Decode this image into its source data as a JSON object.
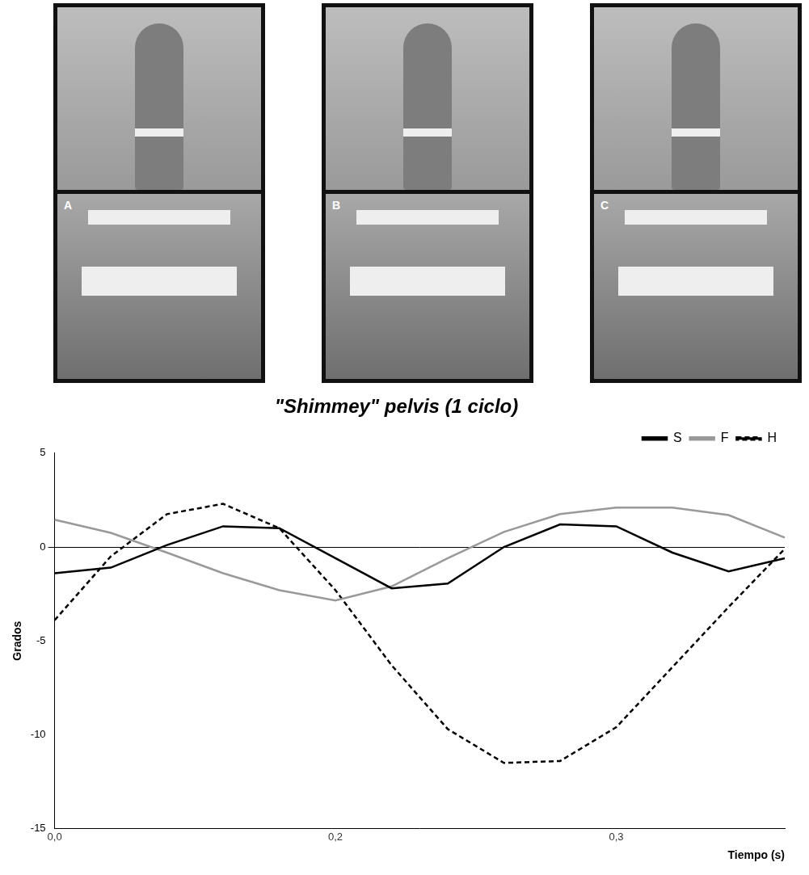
{
  "photos": {
    "labels": [
      "A",
      "B",
      "C"
    ]
  },
  "chart_data": {
    "type": "line",
    "title": "\"Shimmey\" pelvis (1 ciclo)",
    "x_label": "Tiempo (s)",
    "y_label": "Grados",
    "categories": [
      "0,0",
      null,
      null,
      null,
      null,
      "0,2",
      null,
      null,
      null,
      null,
      "0,3",
      null,
      null,
      null
    ],
    "series": [
      {
        "name": "S",
        "color": "#000000",
        "line_style": "solid",
        "values": [
          -1.4,
          -1.1,
          0.1,
          1.1,
          1.0,
          -0.6,
          -2.2,
          -1.95,
          0.0,
          1.2,
          1.1,
          -0.3,
          -1.3,
          -0.6
        ]
      },
      {
        "name": "F",
        "color": "#999999",
        "line_style": "solid",
        "values": [
          1.45,
          0.75,
          -0.3,
          -1.4,
          -2.3,
          -2.85,
          -2.1,
          -0.6,
          0.8,
          1.75,
          2.1,
          2.1,
          1.7,
          0.5
        ]
      },
      {
        "name": "H",
        "color": "#000000",
        "line_style": "dashed",
        "values": [
          -3.9,
          -0.5,
          1.75,
          2.3,
          1.0,
          -2.3,
          -6.3,
          -9.7,
          -11.5,
          -11.4,
          -9.6,
          -6.4,
          -3.2,
          -0.1
        ]
      }
    ],
    "ylim": [
      -15,
      5
    ],
    "yticks": [
      -15,
      -10,
      -5,
      0,
      5
    ],
    "grid": false,
    "legend": "top-right"
  }
}
